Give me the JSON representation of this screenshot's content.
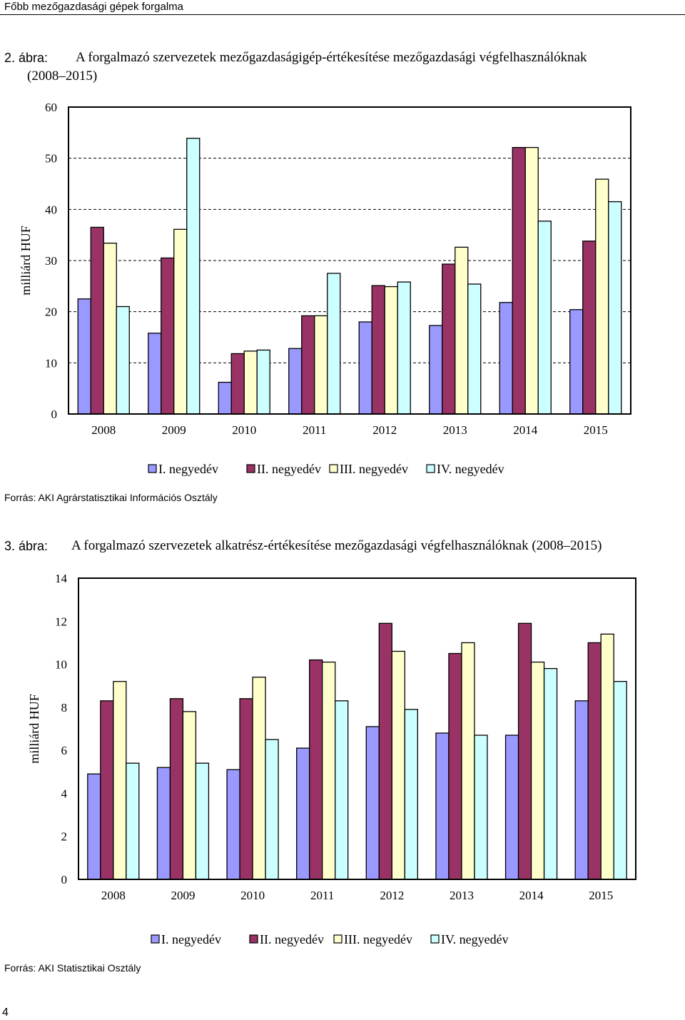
{
  "header": {
    "title": "Főbb mezőgazdasági gépek forgalma"
  },
  "figures": [
    {
      "number": "2. ábra:",
      "title_line1": "A forgalmazó szervezetek mezőgazdaságigép-értékesítése mezőgazdasági végfelhasználóknak",
      "title_line2": "(2008–2015)",
      "source": "Forrás: AKI Agrárstatisztikai Információs Osztály"
    },
    {
      "number": "3. ábra:",
      "title_line1": "A forgalmazó szervezetek alkatrész-értékesítése mezőgazdasági végfelhasználóknak (2008–2015)",
      "title_line2": "",
      "source": "Forrás: AKI Statisztikai Osztály"
    }
  ],
  "page_number": "4",
  "chart_data": [
    {
      "type": "bar",
      "title": "A forgalmazó szervezetek mezőgazdaságigép-értékesítése mezőgazdasági végfelhasználóknak (2008–2015)",
      "xlabel": "",
      "ylabel": "milliárd HUF",
      "ylim": [
        0,
        60
      ],
      "yticks": [
        0,
        10,
        20,
        30,
        40,
        50,
        60
      ],
      "grid": true,
      "legend_position": "bottom",
      "categories": [
        "2008",
        "2009",
        "2010",
        "2011",
        "2012",
        "2013",
        "2014",
        "2015"
      ],
      "series": [
        {
          "name": "I. negyedév",
          "color": "#9999ff",
          "values": [
            22.5,
            15.8,
            6.2,
            12.8,
            18.0,
            17.3,
            21.8,
            20.4
          ]
        },
        {
          "name": "II. negyedév",
          "color": "#993366",
          "values": [
            36.5,
            30.5,
            11.8,
            19.2,
            25.1,
            29.3,
            52.1,
            33.8
          ]
        },
        {
          "name": "III. negyedév",
          "color": "#ffffcc",
          "values": [
            33.4,
            36.1,
            12.3,
            19.2,
            24.9,
            32.6,
            52.1,
            45.9
          ]
        },
        {
          "name": "IV. negyedév",
          "color": "#ccffff",
          "values": [
            21.0,
            53.9,
            12.5,
            27.5,
            25.8,
            25.4,
            37.7,
            41.5
          ]
        }
      ]
    },
    {
      "type": "bar",
      "title": "A forgalmazó szervezetek alkatrész-értékesítése mezőgazdasági végfelhasználóknak (2008–2015)",
      "xlabel": "",
      "ylabel": "milliárd HUF",
      "ylim": [
        0,
        14
      ],
      "yticks": [
        0,
        2,
        4,
        6,
        8,
        10,
        12,
        14
      ],
      "grid": false,
      "legend_position": "bottom",
      "categories": [
        "2008",
        "2009",
        "2010",
        "2011",
        "2012",
        "2013",
        "2014",
        "2015"
      ],
      "series": [
        {
          "name": "I. negyedév",
          "color": "#9999ff",
          "values": [
            4.9,
            5.2,
            5.1,
            6.1,
            7.1,
            6.8,
            6.7,
            8.3
          ]
        },
        {
          "name": "II. negyedév",
          "color": "#993366",
          "values": [
            8.3,
            8.4,
            8.4,
            10.2,
            11.9,
            10.5,
            11.9,
            11.0
          ]
        },
        {
          "name": "III. negyedév",
          "color": "#ffffcc",
          "values": [
            9.2,
            7.8,
            9.4,
            10.1,
            10.6,
            11.0,
            10.1,
            11.4
          ]
        },
        {
          "name": "IV. negyedév",
          "color": "#ccffff",
          "values": [
            5.4,
            5.4,
            6.5,
            8.3,
            7.9,
            6.7,
            9.8,
            9.2
          ]
        }
      ]
    }
  ]
}
